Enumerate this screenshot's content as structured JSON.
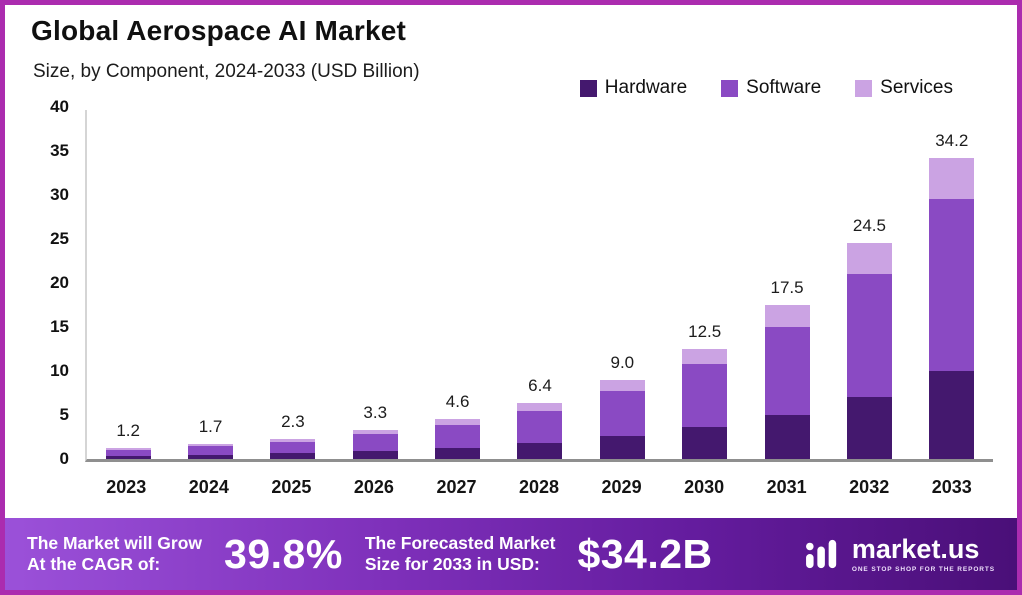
{
  "header": {
    "title": "Global Aerospace AI Market",
    "subtitle": "Size, by Component, 2024-2033 (USD Billion)"
  },
  "chart_data": {
    "type": "bar",
    "stacked": true,
    "title": "Global Aerospace AI Market",
    "subtitle": "Size, by Component, 2024-2033 (USD Billion)",
    "categories": [
      "2023",
      "2024",
      "2025",
      "2026",
      "2027",
      "2028",
      "2029",
      "2030",
      "2031",
      "2032",
      "2033"
    ],
    "totals": [
      1.2,
      1.7,
      2.3,
      3.3,
      4.6,
      6.4,
      9.0,
      12.5,
      17.5,
      24.5,
      34.2
    ],
    "total_labels": [
      "1.2",
      "1.7",
      "2.3",
      "3.3",
      "4.6",
      "6.4",
      "9.0",
      "12.5",
      "17.5",
      "24.5",
      "34.2"
    ],
    "series": [
      {
        "name": "Hardware",
        "color": "#44186e",
        "values": [
          0.35,
          0.5,
          0.65,
          0.95,
          1.3,
          1.8,
          2.6,
          3.6,
          5.0,
          7.0,
          10.0
        ]
      },
      {
        "name": "Software",
        "color": "#8a4ac3",
        "values": [
          0.68,
          0.95,
          1.3,
          1.85,
          2.6,
          3.7,
          5.1,
          7.2,
          10.0,
          14.0,
          19.5
        ]
      },
      {
        "name": "Services",
        "color": "#cba3e3",
        "values": [
          0.17,
          0.25,
          0.35,
          0.5,
          0.7,
          0.9,
          1.3,
          1.7,
          2.5,
          3.5,
          4.7
        ]
      }
    ],
    "ylim": [
      0,
      40
    ],
    "yticks": [
      0,
      5,
      10,
      15,
      20,
      25,
      30,
      35,
      40
    ],
    "legend_position": "top-right",
    "grid": false
  },
  "banner": {
    "cagr_label_line1": "The Market will Grow",
    "cagr_label_line2": "At the CAGR of:",
    "cagr_value": "39.8%",
    "forecast_label_line1": "The Forecasted Market",
    "forecast_label_line2": "Size for 2033 in USD:",
    "forecast_value": "$34.2B",
    "logo_text": "market.us",
    "logo_tagline": "ONE STOP SHOP FOR THE REPORTS"
  },
  "colors": {
    "frame_border": "#ab2caf",
    "hardware": "#44186e",
    "software": "#8a4ac3",
    "services": "#cba3e3",
    "banner_gradient_start": "#9b51d9",
    "banner_gradient_end": "#4a0f78"
  }
}
